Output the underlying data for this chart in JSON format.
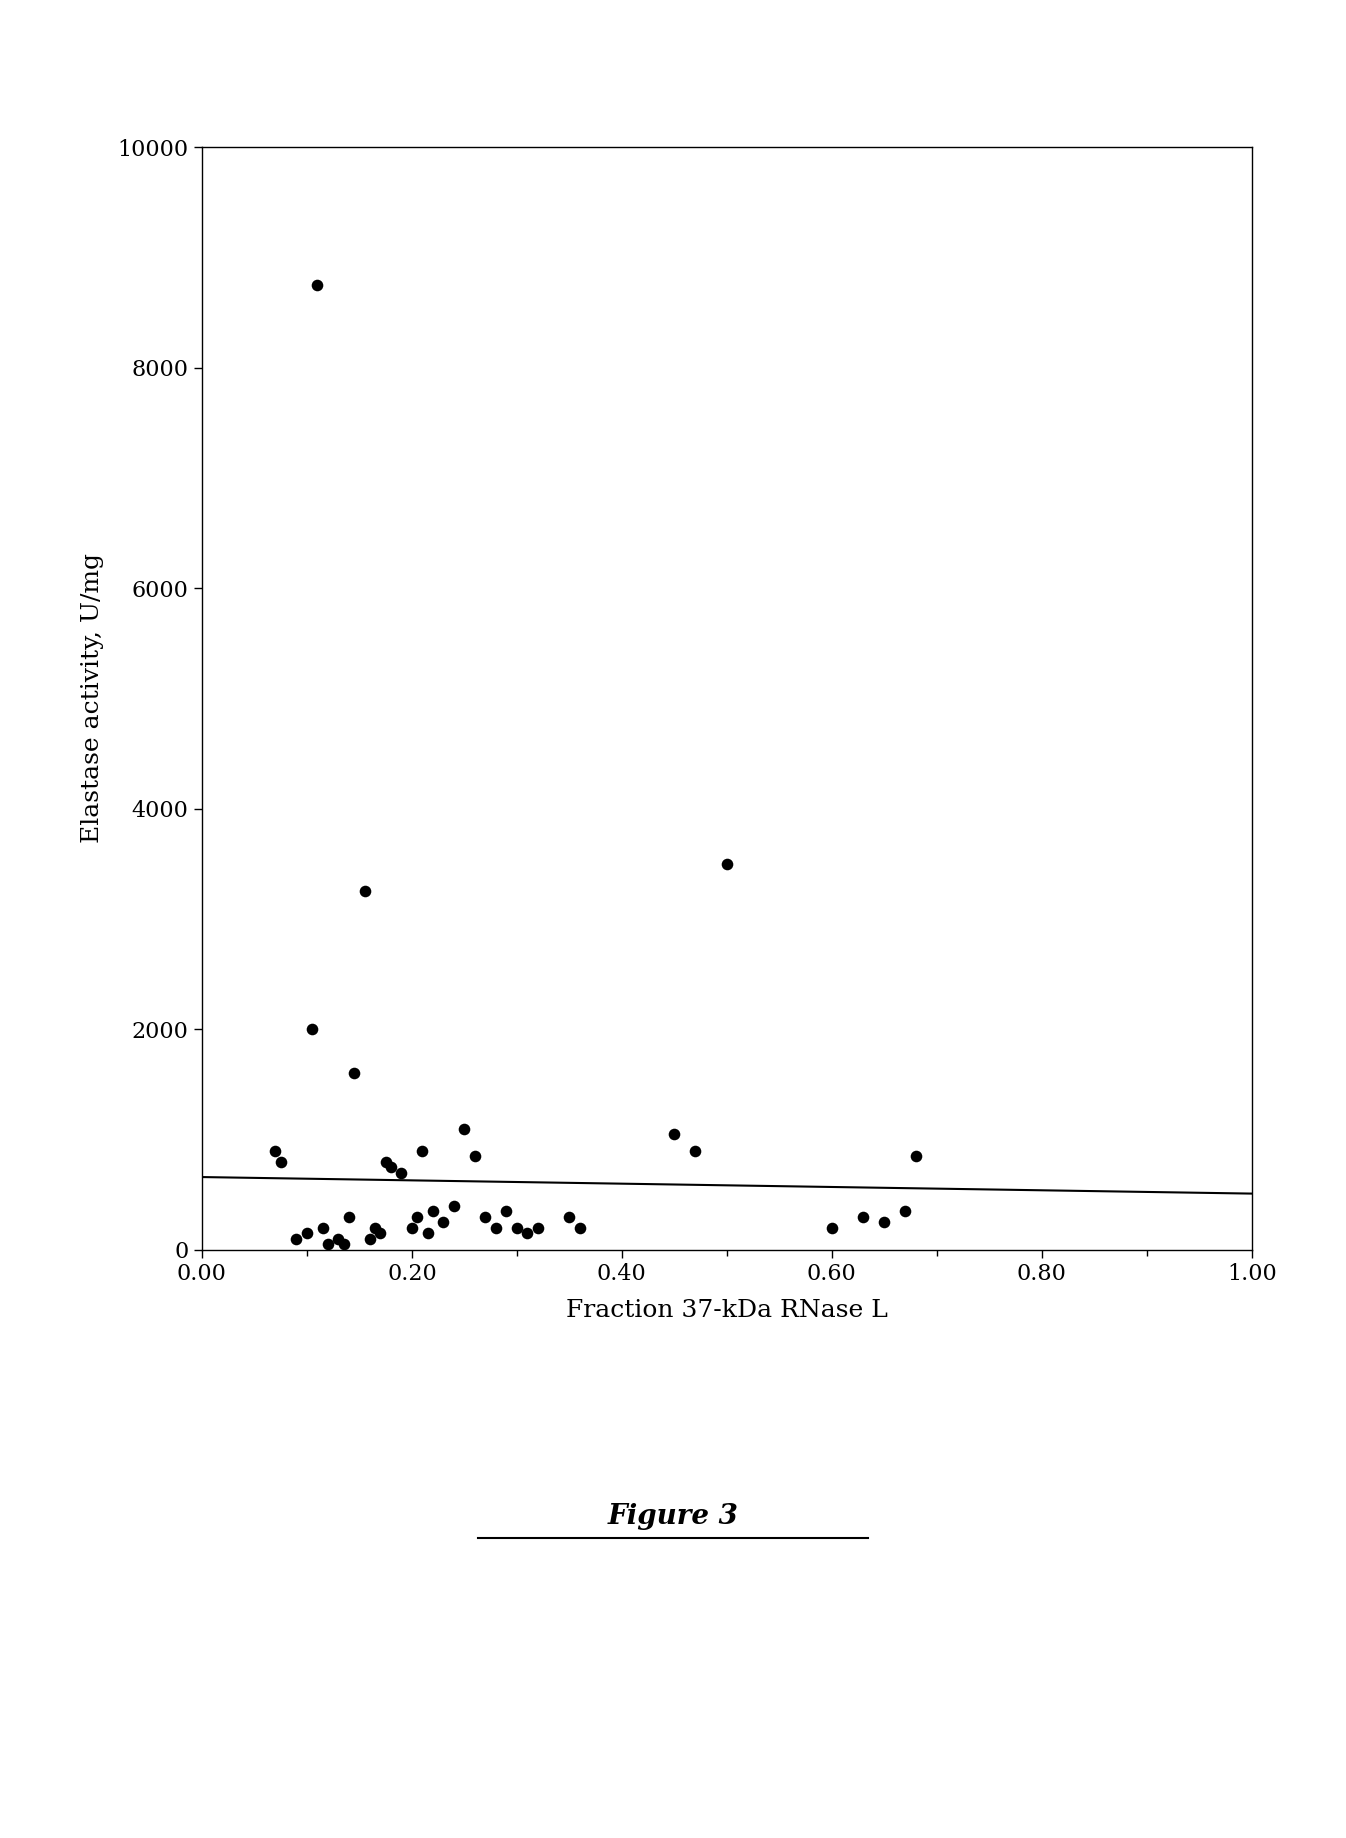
{
  "x_data": [
    0.07,
    0.075,
    0.09,
    0.1,
    0.105,
    0.11,
    0.115,
    0.12,
    0.13,
    0.135,
    0.14,
    0.145,
    0.155,
    0.16,
    0.165,
    0.17,
    0.175,
    0.18,
    0.19,
    0.2,
    0.205,
    0.21,
    0.215,
    0.22,
    0.23,
    0.24,
    0.25,
    0.26,
    0.27,
    0.28,
    0.29,
    0.3,
    0.31,
    0.32,
    0.35,
    0.36,
    0.45,
    0.47,
    0.5,
    0.6,
    0.63,
    0.65,
    0.67,
    0.68
  ],
  "y_data": [
    900,
    800,
    100,
    150,
    2000,
    8750,
    200,
    50,
    100,
    50,
    300,
    1600,
    3250,
    100,
    200,
    150,
    800,
    750,
    700,
    200,
    300,
    900,
    150,
    350,
    250,
    400,
    1100,
    850,
    300,
    200,
    350,
    200,
    150,
    200,
    300,
    200,
    1050,
    900,
    3500,
    200,
    300,
    250,
    350,
    850
  ],
  "trend_x": [
    0.0,
    1.0
  ],
  "trend_y": [
    660,
    510
  ],
  "xlabel": "Fraction 37-kDa RNase L",
  "ylabel": "Elastase activity, U/mg",
  "figure_label": "Figure 3",
  "xlim": [
    0.0,
    1.0
  ],
  "ylim": [
    0,
    10000
  ],
  "xticks": [
    0.0,
    0.2,
    0.4,
    0.6,
    0.8,
    1.0
  ],
  "yticks": [
    0,
    2000,
    4000,
    6000,
    8000,
    10000
  ],
  "xtick_labels": [
    "0.00",
    "0.20",
    "0.40",
    "0.60",
    "0.80",
    "1.00"
  ],
  "ytick_labels": [
    "0",
    "2000",
    "4000",
    "6000",
    "8000",
    "10000"
  ],
  "dot_color": "#000000",
  "dot_size": 70,
  "line_color": "#000000",
  "line_width": 1.5,
  "background_color": "#ffffff",
  "font_family": "serif",
  "tick_fontsize": 16,
  "label_fontsize": 18,
  "figure_label_fontsize": 20
}
